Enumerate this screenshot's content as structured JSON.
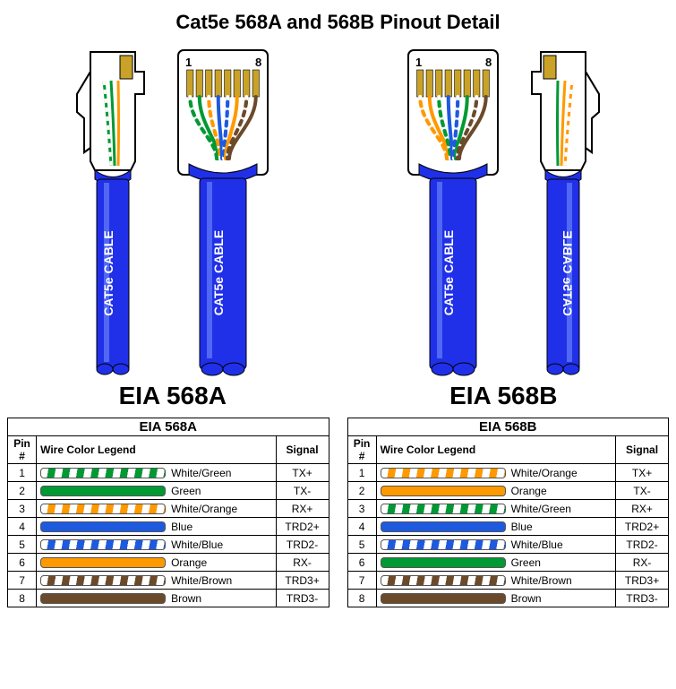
{
  "title": "Cat5e 568A and 568B Pinout Detail",
  "cable_label": "CAT5e CABLE",
  "pin_label_1": "1",
  "pin_label_8": "8",
  "colors": {
    "cable_jacket": "#2030e8",
    "cable_highlight": "#80a0ff",
    "connector_body": "#ffffff",
    "connector_outline": "#000000",
    "gold_pin": "#c9a227",
    "text_white": "#ffffff",
    "grid": "#000000"
  },
  "wire_colors": {
    "white_green": {
      "base": "#ffffff",
      "stripe": "#009933"
    },
    "green": {
      "base": "#009933",
      "stripe": null
    },
    "white_orange": {
      "base": "#ffffff",
      "stripe": "#ff9900"
    },
    "orange": {
      "base": "#ff9900",
      "stripe": null
    },
    "white_blue": {
      "base": "#ffffff",
      "stripe": "#1e5adf"
    },
    "blue": {
      "base": "#1e5adf",
      "stripe": null
    },
    "white_brown": {
      "base": "#ffffff",
      "stripe": "#6b4a2b"
    },
    "brown": {
      "base": "#6b4a2b",
      "stripe": null
    }
  },
  "standards": {
    "a": {
      "label": "EIA 568A",
      "table_title": "EIA 568A",
      "pins": [
        {
          "pin": 1,
          "wire_key": "white_green",
          "name": "White/Green",
          "signal": "TX+"
        },
        {
          "pin": 2,
          "wire_key": "green",
          "name": "Green",
          "signal": "TX-"
        },
        {
          "pin": 3,
          "wire_key": "white_orange",
          "name": "White/Orange",
          "signal": "RX+"
        },
        {
          "pin": 4,
          "wire_key": "blue",
          "name": "Blue",
          "signal": "TRD2+"
        },
        {
          "pin": 5,
          "wire_key": "white_blue",
          "name": "White/Blue",
          "signal": "TRD2-"
        },
        {
          "pin": 6,
          "wire_key": "orange",
          "name": "Orange",
          "signal": "RX-"
        },
        {
          "pin": 7,
          "wire_key": "white_brown",
          "name": "White/Brown",
          "signal": "TRD3+"
        },
        {
          "pin": 8,
          "wire_key": "brown",
          "name": "Brown",
          "signal": "TRD3-"
        }
      ]
    },
    "b": {
      "label": "EIA 568B",
      "table_title": "EIA 568B",
      "pins": [
        {
          "pin": 1,
          "wire_key": "white_orange",
          "name": "White/Orange",
          "signal": "TX+"
        },
        {
          "pin": 2,
          "wire_key": "orange",
          "name": "Orange",
          "signal": "TX-"
        },
        {
          "pin": 3,
          "wire_key": "white_green",
          "name": "White/Green",
          "signal": "RX+"
        },
        {
          "pin": 4,
          "wire_key": "blue",
          "name": "Blue",
          "signal": "TRD2+"
        },
        {
          "pin": 5,
          "wire_key": "white_blue",
          "name": "White/Blue",
          "signal": "TRD2-"
        },
        {
          "pin": 6,
          "wire_key": "green",
          "name": "Green",
          "signal": "RX-"
        },
        {
          "pin": 7,
          "wire_key": "white_brown",
          "name": "White/Brown",
          "signal": "TRD3+"
        },
        {
          "pin": 8,
          "wire_key": "brown",
          "name": "Brown",
          "signal": "TRD3-"
        }
      ]
    }
  },
  "headers": {
    "pin": "Pin #",
    "color": "Wire Color Legend",
    "signal": "Signal"
  },
  "layout": {
    "side_svg_w": 95,
    "side_svg_h": 370,
    "front_svg_w": 120,
    "front_svg_h": 370,
    "cable_bottom_h": 220
  }
}
